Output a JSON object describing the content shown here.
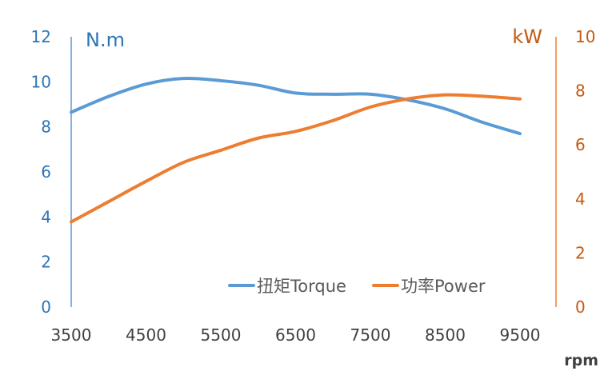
{
  "chart_data": {
    "type": "line",
    "title": "",
    "x_label": "rpm",
    "y_left_label": "N.m",
    "y_right_label": "kW",
    "x_ticks": [
      "3500",
      "4500",
      "5500",
      "6500",
      "7500",
      "8500",
      "9500"
    ],
    "x_range": [
      3500,
      9500
    ],
    "y_left": {
      "min": 0,
      "max": 12,
      "ticks": [
        "0",
        "2",
        "4",
        "6",
        "8",
        "10",
        "12"
      ]
    },
    "y_right": {
      "min": 0,
      "max": 10,
      "ticks": [
        "0",
        "2",
        "4",
        "6",
        "8",
        "10"
      ]
    },
    "grid": false,
    "legend_position": "bottom-right",
    "series": [
      {
        "name": "扭矩Torque",
        "axis": "left",
        "color": "#5B9BD5",
        "x": [
          3500,
          4000,
          4500,
          5000,
          5500,
          6000,
          6500,
          7000,
          7500,
          8000,
          8500,
          9000,
          9500
        ],
        "y": [
          8.65,
          9.35,
          9.9,
          10.15,
          10.05,
          9.85,
          9.5,
          9.45,
          9.45,
          9.2,
          8.8,
          8.2,
          7.7
        ]
      },
      {
        "name": "功率Power",
        "axis": "right",
        "color": "#ED7D31",
        "x": [
          3500,
          4000,
          4500,
          5000,
          5500,
          6000,
          6500,
          7000,
          7500,
          8000,
          8500,
          9000,
          9500
        ],
        "y": [
          3.15,
          3.9,
          4.65,
          5.35,
          5.8,
          6.25,
          6.5,
          6.9,
          7.4,
          7.7,
          7.85,
          7.8,
          7.7
        ]
      }
    ]
  },
  "colors": {
    "left_axis": "#2E75B6",
    "right_axis": "#C55A11",
    "axis_line_left": "#5B9BD5",
    "axis_line_right": "#ED7D31",
    "x_tick": "#404040"
  }
}
